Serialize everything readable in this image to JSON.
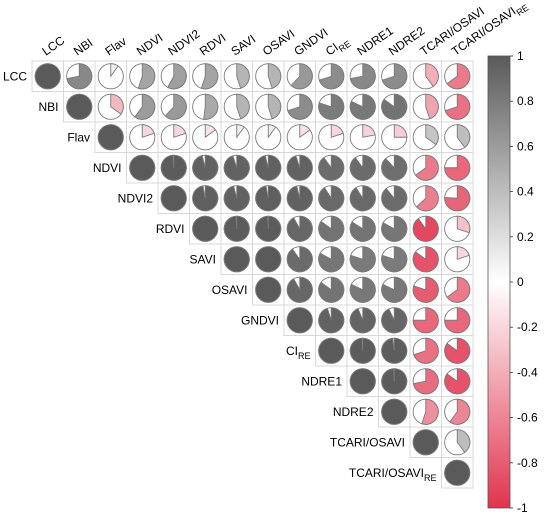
{
  "chart_data": {
    "type": "heatmap",
    "subtype": "correlation-pie-upper-triangle",
    "variables": [
      {
        "base": "LCC",
        "sub": ""
      },
      {
        "base": "NBI",
        "sub": ""
      },
      {
        "base": "Flav",
        "sub": ""
      },
      {
        "base": "NDVI",
        "sub": ""
      },
      {
        "base": "NDVI2",
        "sub": ""
      },
      {
        "base": "RDVI",
        "sub": ""
      },
      {
        "base": "SAVI",
        "sub": ""
      },
      {
        "base": "OSAVI",
        "sub": ""
      },
      {
        "base": "GNDVI",
        "sub": ""
      },
      {
        "base": "CI",
        "sub": "RE"
      },
      {
        "base": "NDRE1",
        "sub": ""
      },
      {
        "base": "NDRE2",
        "sub": ""
      },
      {
        "base": "TCARI/OSAVI",
        "sub": ""
      },
      {
        "base": "TCARI/OSAVI",
        "sub": "RE"
      }
    ],
    "matrix": [
      [
        1,
        0.72,
        0.1,
        0.55,
        0.58,
        0.55,
        0.45,
        0.45,
        0.62,
        0.7,
        0.72,
        0.7,
        -0.4,
        -0.65
      ],
      [
        0.72,
        1,
        -0.35,
        0.6,
        0.62,
        0.52,
        0.45,
        0.45,
        0.7,
        0.8,
        0.82,
        0.85,
        -0.45,
        -0.7
      ],
      [
        0.1,
        -0.35,
        1,
        -0.2,
        -0.2,
        -0.15,
        -0.1,
        -0.1,
        -0.15,
        -0.2,
        -0.22,
        -0.25,
        0.35,
        0.4
      ],
      [
        0.55,
        0.6,
        -0.2,
        1,
        0.99,
        0.96,
        0.95,
        0.96,
        0.95,
        0.9,
        0.9,
        0.88,
        -0.65,
        -0.75
      ],
      [
        0.58,
        0.62,
        -0.2,
        0.99,
        1,
        0.97,
        0.96,
        0.97,
        0.96,
        0.91,
        0.91,
        0.89,
        -0.63,
        -0.76
      ],
      [
        0.55,
        0.52,
        -0.15,
        0.96,
        0.97,
        1,
        0.99,
        0.99,
        0.92,
        0.85,
        0.84,
        0.83,
        -0.9,
        -0.3
      ],
      [
        0.45,
        0.45,
        -0.1,
        0.95,
        0.96,
        0.99,
        1,
        1,
        0.9,
        0.83,
        0.8,
        0.8,
        -0.85,
        -0.2
      ],
      [
        0.45,
        0.45,
        -0.1,
        0.96,
        0.97,
        0.99,
        1,
        1,
        0.92,
        0.85,
        0.82,
        0.82,
        -0.8,
        -0.65
      ],
      [
        0.62,
        0.7,
        -0.15,
        0.95,
        0.96,
        0.92,
        0.9,
        0.92,
        1,
        0.95,
        0.94,
        0.93,
        -0.75,
        -0.75
      ],
      [
        0.7,
        0.8,
        -0.2,
        0.9,
        0.91,
        0.85,
        0.83,
        0.85,
        0.95,
        1,
        0.99,
        0.98,
        -0.7,
        -0.85
      ],
      [
        0.72,
        0.82,
        -0.22,
        0.9,
        0.91,
        0.84,
        0.8,
        0.82,
        0.94,
        0.99,
        1,
        0.99,
        -0.72,
        -0.85
      ],
      [
        0.7,
        0.85,
        -0.25,
        0.88,
        0.89,
        0.83,
        0.8,
        0.82,
        0.93,
        0.98,
        0.99,
        1,
        -0.55,
        -0.6
      ],
      [
        -0.4,
        -0.45,
        0.35,
        -0.65,
        -0.63,
        -0.9,
        -0.85,
        -0.8,
        -0.75,
        -0.7,
        -0.72,
        -0.55,
        1,
        0.4
      ],
      [
        -0.65,
        -0.7,
        0.4,
        -0.75,
        -0.76,
        -0.3,
        -0.2,
        -0.65,
        -0.75,
        -0.85,
        -0.85,
        -0.6,
        0.4,
        1
      ]
    ],
    "colorbar": {
      "min": -1,
      "max": 1,
      "ticks": [
        "1",
        "0.8",
        "0.6",
        "0.4",
        "0.2",
        "0",
        "-0.2",
        "-0.4",
        "-0.6",
        "-0.8",
        "-1"
      ],
      "tick_values": [
        1,
        0.8,
        0.6,
        0.4,
        0.2,
        0,
        -0.2,
        -0.4,
        -0.6,
        -0.8,
        -1
      ]
    },
    "colors": {
      "positive": "#5a5a5a",
      "neutral": "#ffffff",
      "negative": "#e0344e",
      "grid": "#d9d9d9",
      "pie_outline": "#7a7a7a"
    },
    "title": "",
    "xlabel": "",
    "ylabel": "",
    "grid": true,
    "legend_placement": "right"
  }
}
